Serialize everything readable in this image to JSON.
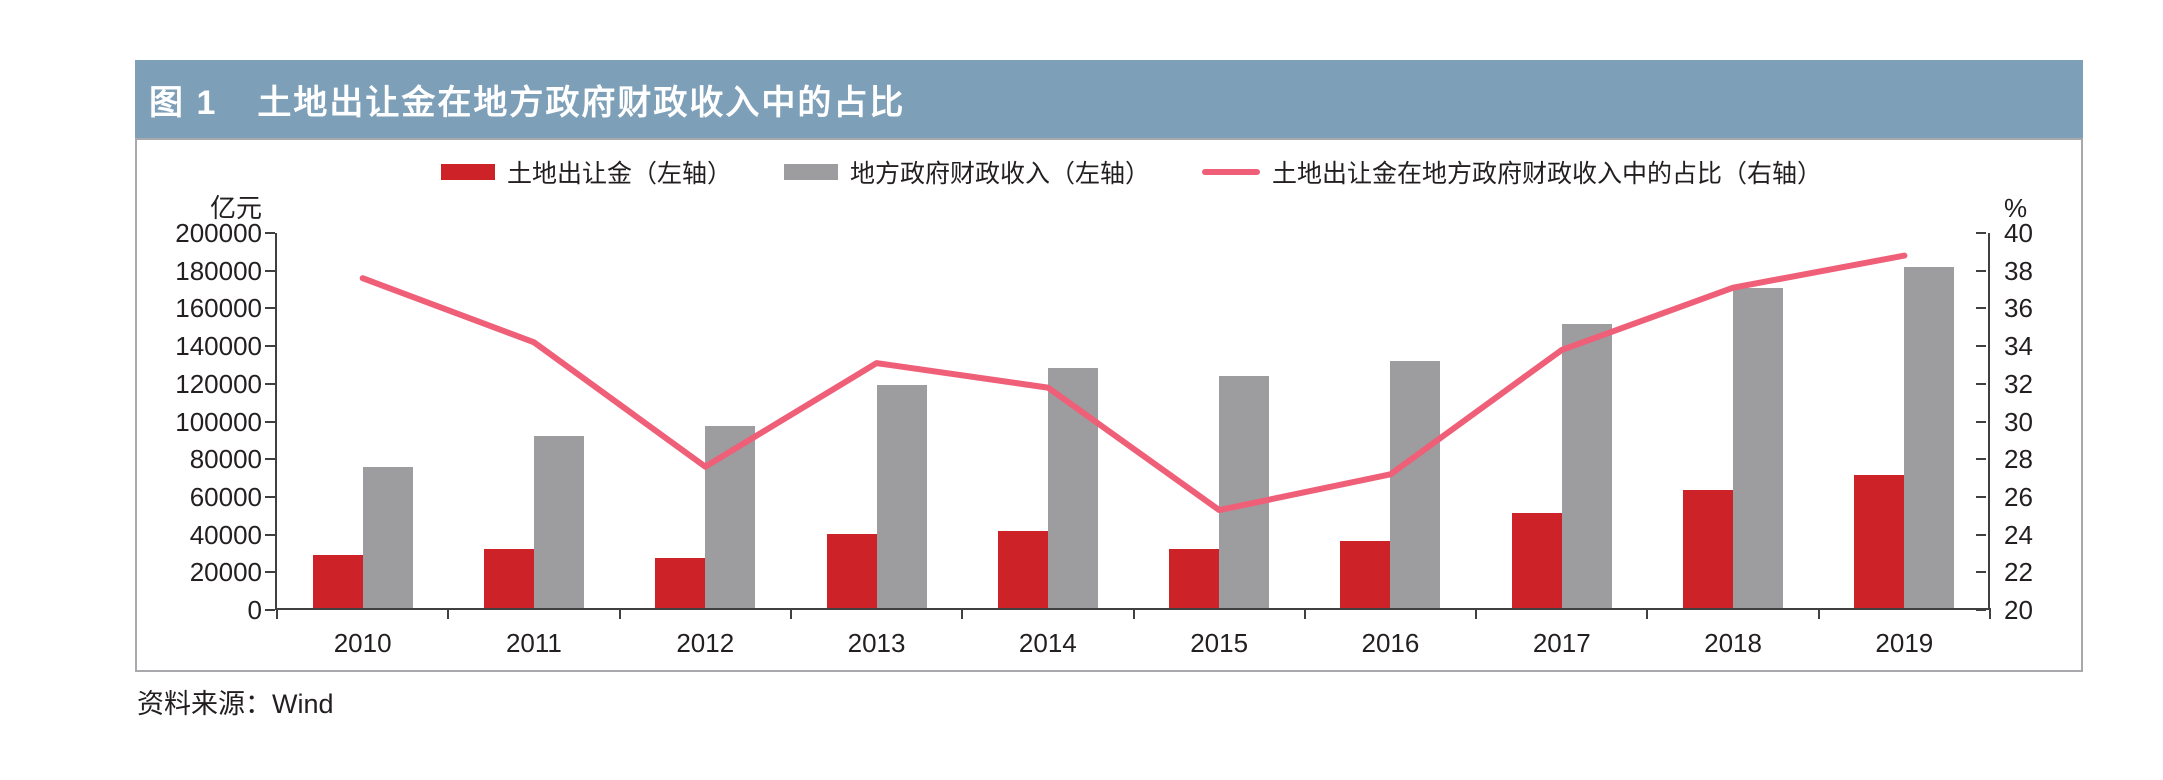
{
  "page": {
    "title_prefix": "图 1",
    "title": "土地出让金在地方政府财政收入中的占比",
    "source": "资料来源：Wind"
  },
  "colors": {
    "title_bar_bg": "#7d9fb8",
    "title_text": "#ffffff",
    "bar_red": "#cd2328",
    "bar_gray": "#9d9c9e",
    "line_pink": "#ef5f78",
    "axis": "#404040",
    "panel_border": "#a7a9ac"
  },
  "chart_data": {
    "type": "bar",
    "subtype": "bar+line dual axis",
    "title": "土地出让金在地方政府财政收入中的占比",
    "categories": [
      "2010",
      "2011",
      "2012",
      "2013",
      "2014",
      "2015",
      "2016",
      "2017",
      "2018",
      "2019"
    ],
    "series": [
      {
        "name": "土地出让金（左轴）",
        "type": "bar",
        "axis": "left",
        "color": "#cd2328",
        "values": [
          28000,
          31200,
          26500,
          39200,
          40600,
          31200,
          35500,
          50500,
          62500,
          70500
        ]
      },
      {
        "name": "地方政府财政收入（左轴）",
        "type": "bar",
        "axis": "left",
        "color": "#9d9c9e",
        "values": [
          75000,
          91500,
          96500,
          118500,
          127500,
          123000,
          131000,
          150500,
          170000,
          181000
        ]
      },
      {
        "name": "土地出让金在地方政府财政收入中的占比（右轴）",
        "type": "line",
        "axis": "right",
        "color": "#ef5f78",
        "values": [
          37.6,
          34.2,
          27.6,
          33.1,
          31.8,
          25.3,
          27.2,
          33.8,
          37.1,
          38.8
        ]
      }
    ],
    "left_axis": {
      "unit": "亿元",
      "min": 0,
      "max": 200000,
      "step": 20000,
      "ticks": [
        0,
        20000,
        40000,
        60000,
        80000,
        100000,
        120000,
        140000,
        160000,
        180000,
        200000
      ]
    },
    "right_axis": {
      "unit": "%",
      "min": 20,
      "max": 40,
      "step": 2,
      "ticks": [
        20,
        22,
        24,
        26,
        28,
        30,
        32,
        34,
        36,
        38,
        40
      ]
    },
    "grid": false,
    "legend_position": "top"
  }
}
